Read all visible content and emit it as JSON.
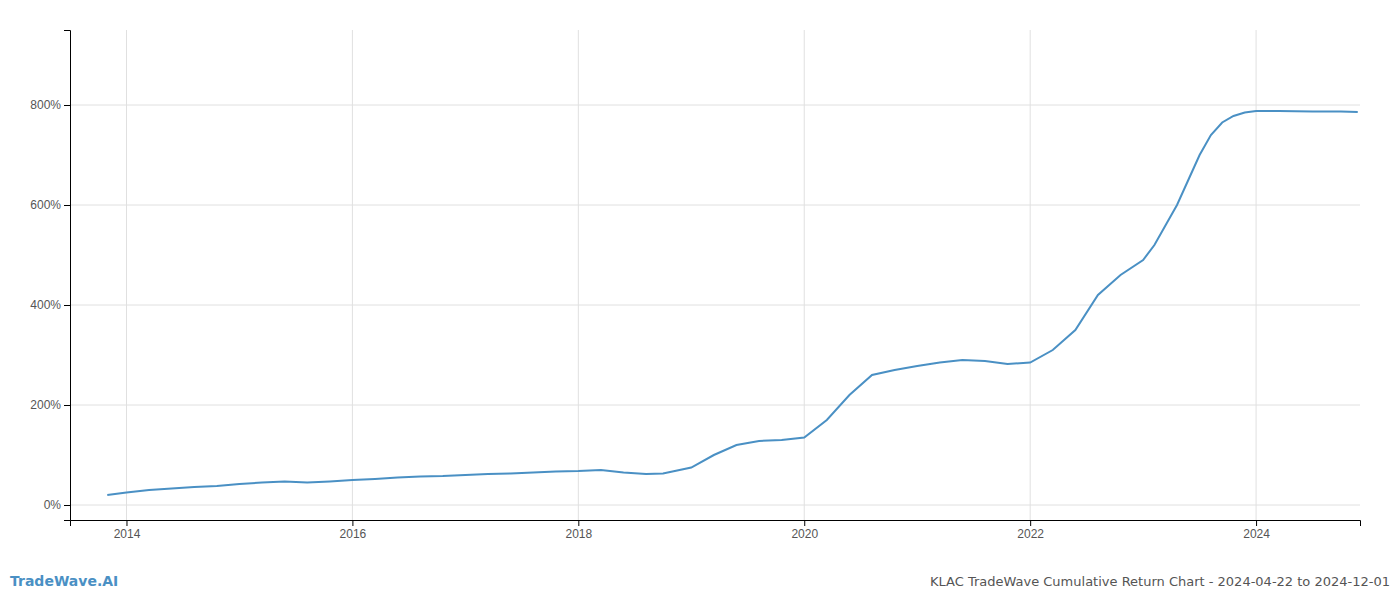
{
  "chart_data": {
    "type": "line",
    "title": "KLAC TradeWave Cumulative Return Chart - 2024-04-22 to 2024-12-01",
    "annotations": [
      "TradeWave.AI"
    ],
    "color": "#4a90c4",
    "x": [
      2013.83,
      2014.0,
      2014.2,
      2014.4,
      2014.6,
      2014.8,
      2015.0,
      2015.2,
      2015.4,
      2015.6,
      2015.8,
      2016.0,
      2016.2,
      2016.4,
      2016.6,
      2016.8,
      2017.0,
      2017.2,
      2017.4,
      2017.6,
      2017.8,
      2018.0,
      2018.2,
      2018.4,
      2018.6,
      2018.75,
      2019.0,
      2019.2,
      2019.4,
      2019.6,
      2019.8,
      2020.0,
      2020.2,
      2020.4,
      2020.6,
      2020.8,
      2021.0,
      2021.2,
      2021.4,
      2021.6,
      2021.8,
      2022.0,
      2022.2,
      2022.4,
      2022.6,
      2022.8,
      2023.0,
      2023.1,
      2023.2,
      2023.3,
      2023.4,
      2023.5,
      2023.6,
      2023.7,
      2023.8,
      2023.9,
      2024.0,
      2024.2,
      2024.5,
      2024.75,
      2024.9
    ],
    "values": [
      0.2,
      0.25,
      0.3,
      0.33,
      0.36,
      0.38,
      0.42,
      0.45,
      0.47,
      0.45,
      0.47,
      0.5,
      0.52,
      0.55,
      0.57,
      0.58,
      0.6,
      0.62,
      0.63,
      0.65,
      0.67,
      0.68,
      0.7,
      0.65,
      0.62,
      0.63,
      0.75,
      1.0,
      1.2,
      1.28,
      1.3,
      1.35,
      1.7,
      2.2,
      2.6,
      2.7,
      2.78,
      2.85,
      2.9,
      2.88,
      2.82,
      2.85,
      3.1,
      3.5,
      4.2,
      4.6,
      4.9,
      5.2,
      5.6,
      6.0,
      6.5,
      7.0,
      7.4,
      7.65,
      7.78,
      7.85,
      7.88,
      7.88,
      7.87,
      7.87,
      7.86
    ],
    "xlim": [
      2013.5,
      2024.92
    ],
    "ylim": [
      -0.3,
      9.5
    ],
    "xticks": [
      2014,
      2016,
      2018,
      2020,
      2022,
      2024
    ],
    "yticks": [
      {
        "value": 0,
        "label": "0%"
      },
      {
        "value": 2,
        "label": "200%"
      },
      {
        "value": 4,
        "label": "400%"
      },
      {
        "value": 6,
        "label": "600%"
      },
      {
        "value": 8,
        "label": "800%"
      }
    ],
    "grid": true
  }
}
